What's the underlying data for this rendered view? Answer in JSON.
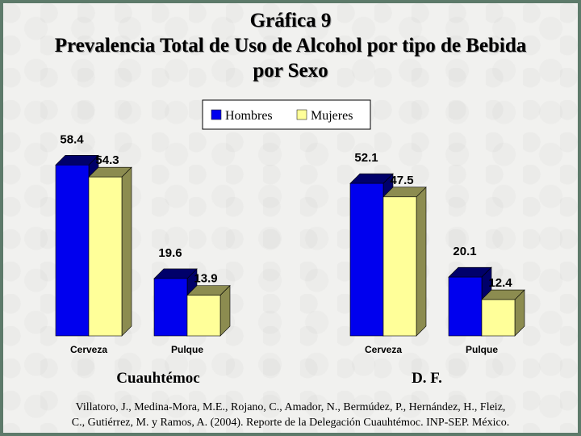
{
  "title": {
    "line1": "Gráfica 9",
    "line2": "Prevalencia Total de Uso de Alcohol por tipo de Bebida",
    "line3": "por Sexo"
  },
  "colors": {
    "hombres": "#0000ee",
    "mujeres": "#ffff99",
    "hombres_side": "#00006a",
    "mujeres_side": "#8c8c50"
  },
  "chart_data": {
    "type": "bar",
    "legend_position": "top-center",
    "grid": false,
    "ylim": [
      0,
      60
    ],
    "series_names": [
      "Hombres",
      "Mujeres"
    ],
    "panels": [
      {
        "group_label": "Cuauhtémoc",
        "categories": [
          "Cerveza",
          "Pulque"
        ],
        "series": [
          {
            "name": "Hombres",
            "values": [
              58.4,
              19.6
            ]
          },
          {
            "name": "Mujeres",
            "values": [
              54.3,
              13.9
            ]
          }
        ]
      },
      {
        "group_label": "D. F.",
        "categories": [
          "Cerveza",
          "Pulque"
        ],
        "series": [
          {
            "name": "Hombres",
            "values": [
              52.1,
              20.1
            ]
          },
          {
            "name": "Mujeres",
            "values": [
              47.5,
              12.4
            ]
          }
        ]
      }
    ]
  },
  "citation": {
    "line1": "Villatoro, J., Medina-Mora, M.E., Rojano, C., Amador, N., Bermúdez, P., Hernández, H., Fleiz,",
    "line2": "C., Gutiérrez, M. y Ramos, A. (2004). Reporte de la Delegación Cuauhtémoc. INP-SEP. México."
  }
}
